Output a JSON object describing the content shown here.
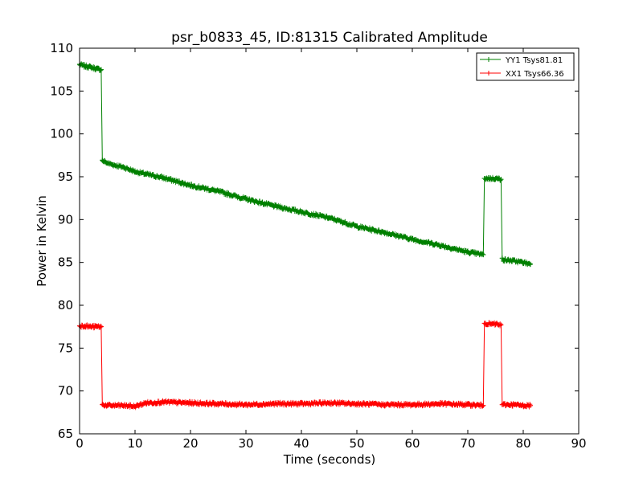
{
  "chart_data": {
    "type": "line",
    "title": "psr_b0833_45, ID:81315 Calibrated Amplitude",
    "xlabel": "Time (seconds)",
    "ylabel": "Power in Kelvin",
    "xlim": [
      0,
      90
    ],
    "ylim": [
      65,
      110
    ],
    "xticks": [
      0,
      10,
      20,
      30,
      40,
      50,
      60,
      70,
      80,
      90
    ],
    "yticks": [
      65,
      70,
      75,
      80,
      85,
      90,
      95,
      100,
      105,
      110
    ],
    "grid": false,
    "legend_position": "top-right",
    "marker": "+",
    "series": [
      {
        "name": "YY1 Tsys81.81",
        "color": "#008000",
        "x": [
          0.0,
          1.0,
          2.0,
          3.0,
          3.9,
          4.1,
          5.0,
          6.0,
          8.0,
          10.0,
          12.0,
          15.0,
          20.0,
          25.0,
          30.0,
          35.0,
          40.0,
          45.0,
          50.0,
          55.0,
          60.0,
          65.0,
          70.0,
          72.8,
          73.0,
          73.2,
          74.0,
          75.0,
          76.0,
          76.2,
          76.4,
          78.0,
          80.0,
          81.3
        ],
        "y": [
          108.1,
          107.9,
          107.8,
          107.6,
          107.5,
          96.9,
          96.6,
          96.4,
          96.1,
          95.6,
          95.3,
          94.9,
          94.0,
          93.3,
          92.4,
          91.6,
          90.9,
          90.2,
          89.2,
          88.5,
          87.7,
          87.0,
          86.2,
          85.9,
          94.8,
          94.8,
          94.8,
          94.8,
          94.7,
          85.5,
          85.3,
          85.2,
          85.0,
          84.8
        ]
      },
      {
        "name": "XX1 Tsys66.36",
        "color": "#ff0000",
        "x": [
          0.0,
          1.0,
          2.0,
          3.0,
          3.9,
          4.1,
          5.0,
          8.0,
          10.0,
          12.0,
          15.0,
          20.0,
          25.0,
          30.0,
          35.0,
          40.0,
          45.0,
          50.0,
          55.0,
          60.0,
          65.0,
          70.0,
          72.8,
          73.0,
          73.2,
          74.0,
          75.0,
          76.0,
          76.2,
          76.4,
          78.0,
          80.0,
          81.3
        ],
        "y": [
          77.6,
          77.6,
          77.5,
          77.5,
          77.5,
          68.4,
          68.3,
          68.3,
          68.2,
          68.6,
          68.7,
          68.6,
          68.5,
          68.4,
          68.5,
          68.5,
          68.6,
          68.5,
          68.4,
          68.4,
          68.5,
          68.4,
          68.3,
          77.9,
          77.9,
          77.8,
          77.8,
          77.7,
          68.4,
          68.4,
          68.4,
          68.3,
          68.3
        ]
      }
    ]
  }
}
